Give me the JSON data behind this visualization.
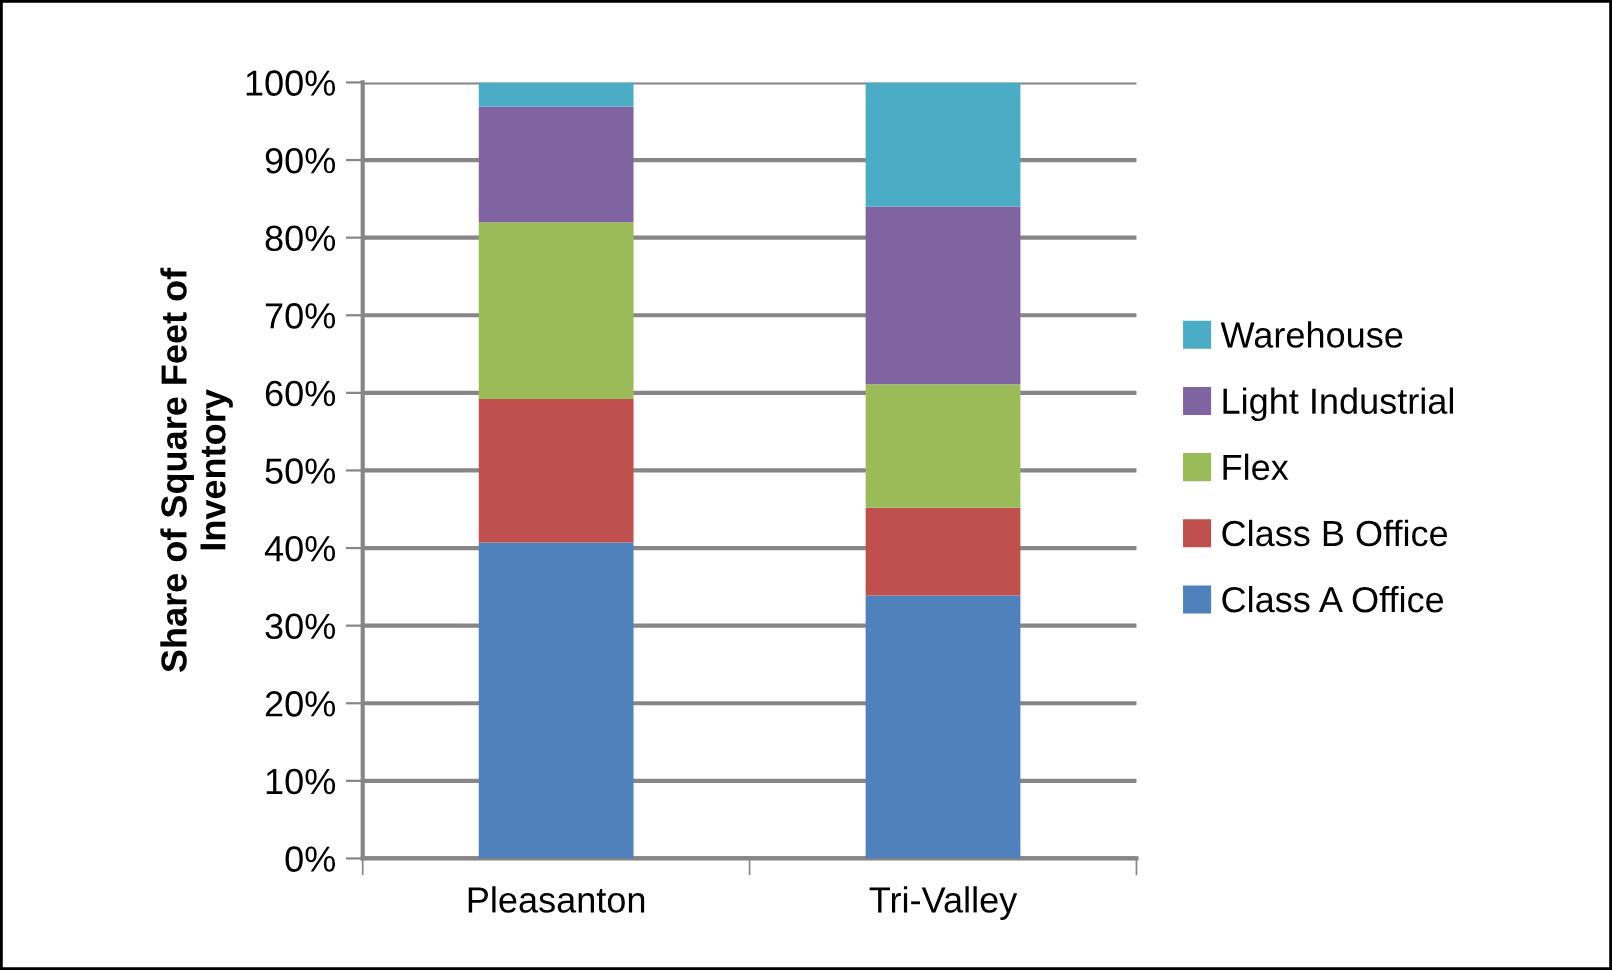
{
  "chart_data": {
    "type": "bar",
    "stacked": true,
    "ylabel": "Share of Square Feet of\nInventory",
    "categories": [
      "Pleasanton",
      "Tri-Valley"
    ],
    "series": [
      {
        "name": "Class A Office",
        "color": "#4f81bd",
        "values": [
          40.7,
          33.9
        ]
      },
      {
        "name": "Class B Office",
        "color": "#c0504d",
        "values": [
          18.5,
          11.3
        ]
      },
      {
        "name": "Flex",
        "color": "#9bbb59",
        "values": [
          22.8,
          15.9
        ]
      },
      {
        "name": "Light Industrial",
        "color": "#8064a2",
        "values": [
          14.9,
          22.9
        ]
      },
      {
        "name": "Warehouse",
        "color": "#4bacc6",
        "values": [
          3.1,
          16.0
        ]
      }
    ],
    "ylim": [
      0,
      100
    ],
    "yticks": [
      {
        "value": 0,
        "label": "0%"
      },
      {
        "value": 10,
        "label": "10%"
      },
      {
        "value": 20,
        "label": "20%"
      },
      {
        "value": 30,
        "label": "30%"
      },
      {
        "value": 40,
        "label": "40%"
      },
      {
        "value": 50,
        "label": "50%"
      },
      {
        "value": 60,
        "label": "60%"
      },
      {
        "value": 70,
        "label": "70%"
      },
      {
        "value": 80,
        "label": "80%"
      },
      {
        "value": 90,
        "label": "90%"
      },
      {
        "value": 100,
        "label": "100%"
      }
    ],
    "grid": "y",
    "legend": "right"
  }
}
